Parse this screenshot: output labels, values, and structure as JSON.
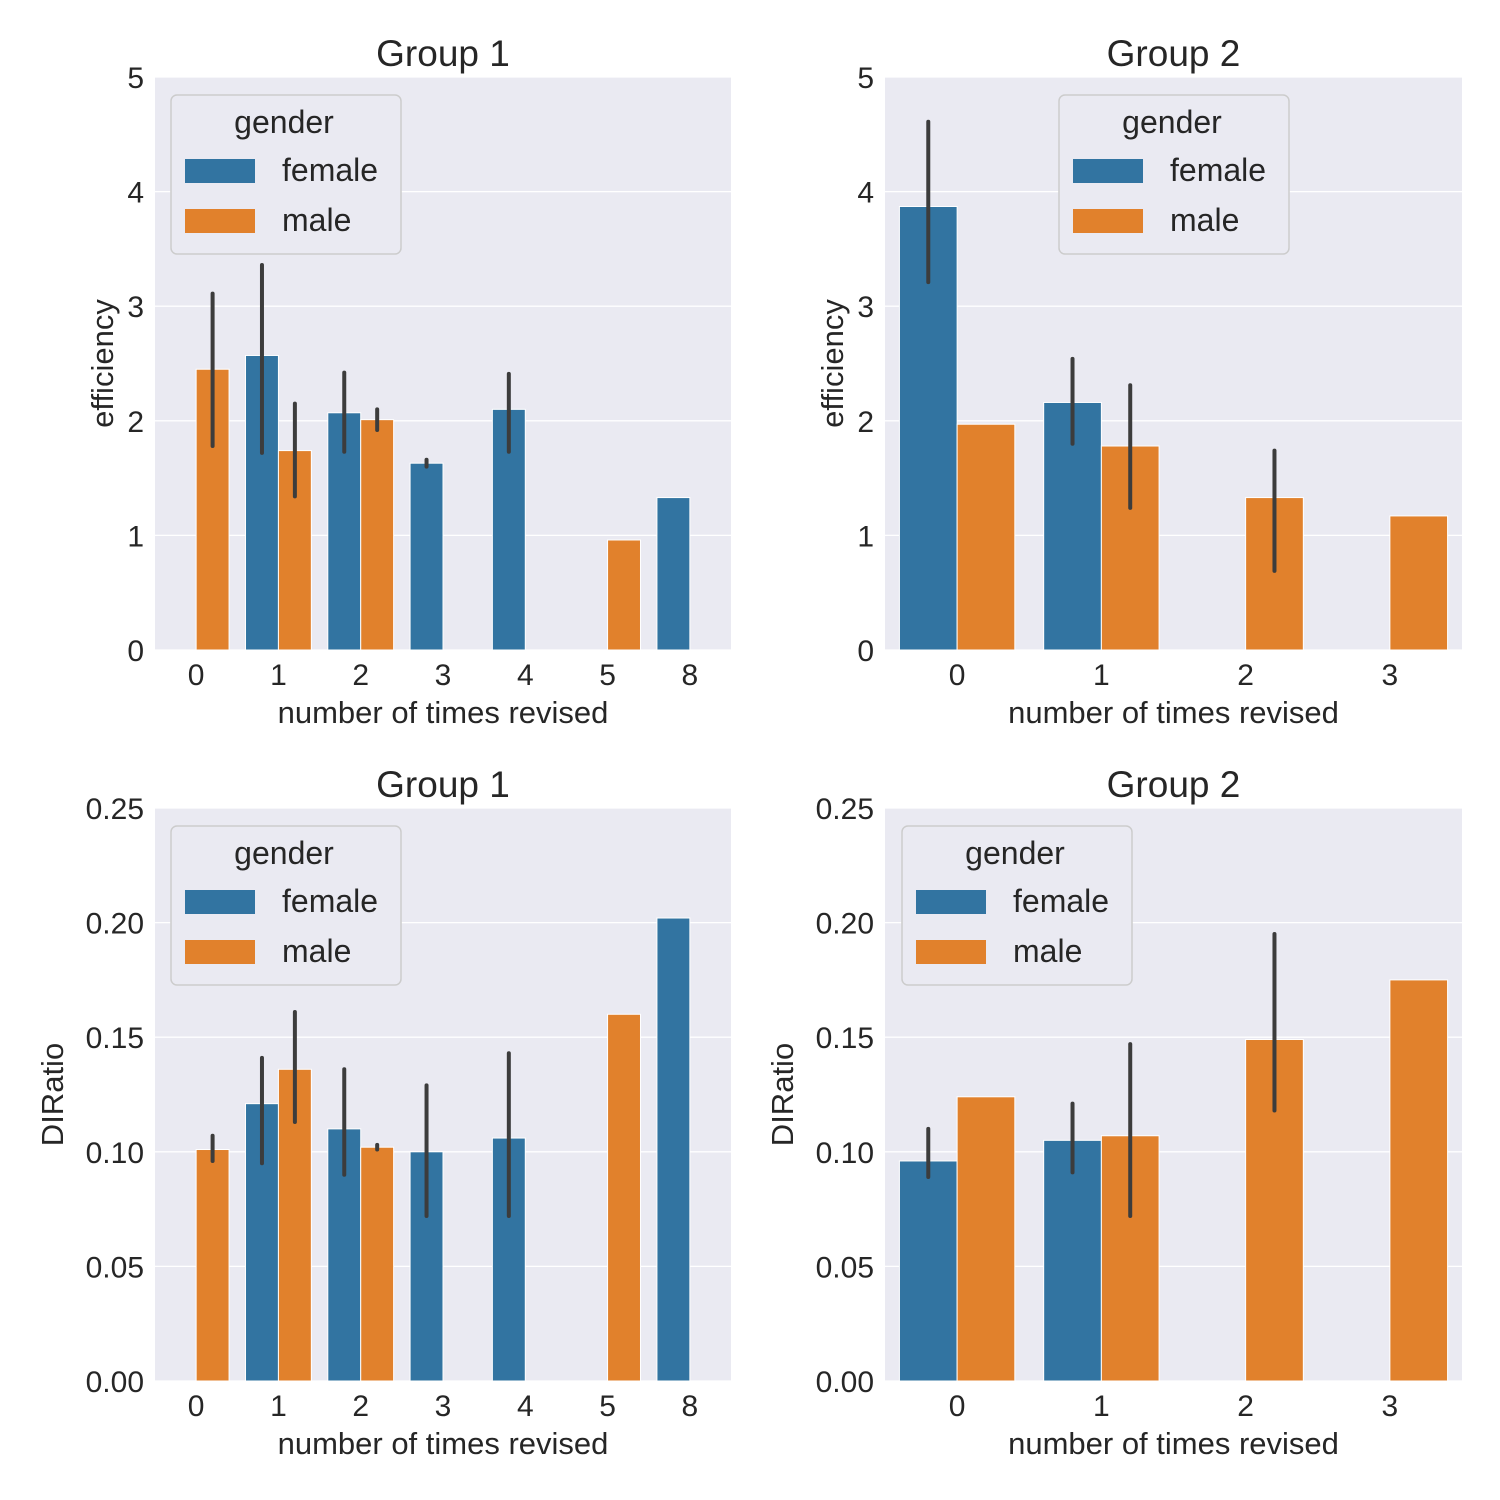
{
  "colors": {
    "female": "#3274a1",
    "male": "#e1812c",
    "background": "#eaeaf2",
    "grid": "#ffffff",
    "errorbar": "#3c3c3c"
  },
  "chart_data": [
    {
      "type": "bar",
      "title": "Group 1",
      "xlabel": "number of times revised",
      "ylabel": "efficiency",
      "ylim": [
        0,
        5
      ],
      "yticks": [
        "0",
        "1",
        "2",
        "3",
        "4",
        "5"
      ],
      "ytick_values": [
        0,
        1,
        2,
        3,
        4,
        5
      ],
      "categories": [
        "0",
        "1",
        "2",
        "3",
        "4",
        "5",
        "8"
      ],
      "legend": {
        "title": "gender",
        "entries": [
          "female",
          "male"
        ],
        "placement": "upper-left"
      },
      "series": [
        {
          "name": "female",
          "values": [
            null,
            2.57,
            2.07,
            1.63,
            2.1,
            null,
            1.33
          ],
          "err_low": [
            null,
            1.72,
            1.73,
            1.6,
            1.73,
            null,
            null
          ],
          "err_high": [
            null,
            3.36,
            2.42,
            1.66,
            2.41,
            null,
            null
          ]
        },
        {
          "name": "male",
          "values": [
            2.45,
            1.74,
            2.01,
            null,
            null,
            0.96,
            null
          ],
          "err_low": [
            1.78,
            1.34,
            1.92,
            null,
            null,
            null,
            null
          ],
          "err_high": [
            3.11,
            2.15,
            2.1,
            null,
            null,
            null,
            null
          ]
        }
      ]
    },
    {
      "type": "bar",
      "title": "Group 2",
      "xlabel": "number of times revised",
      "ylabel": "efficiency",
      "ylim": [
        0,
        5
      ],
      "yticks": [
        "0",
        "1",
        "2",
        "3",
        "4",
        "5"
      ],
      "ytick_values": [
        0,
        1,
        2,
        3,
        4,
        5
      ],
      "categories": [
        "0",
        "1",
        "2",
        "3"
      ],
      "legend": {
        "title": "gender",
        "entries": [
          "female",
          "male"
        ],
        "placement": "upper-center"
      },
      "series": [
        {
          "name": "female",
          "values": [
            3.87,
            2.16,
            null,
            null
          ],
          "err_low": [
            3.21,
            1.8,
            null,
            null
          ],
          "err_high": [
            4.61,
            2.54,
            null,
            null
          ]
        },
        {
          "name": "male",
          "values": [
            1.97,
            1.78,
            1.33,
            1.17
          ],
          "err_low": [
            null,
            1.24,
            0.69,
            null
          ],
          "err_high": [
            null,
            2.31,
            1.74,
            null
          ]
        }
      ]
    },
    {
      "type": "bar",
      "title": "Group 1",
      "xlabel": "number of times revised",
      "ylabel": "DIRatio",
      "ylim": [
        0,
        0.25
      ],
      "yticks": [
        "0.00",
        "0.05",
        "0.10",
        "0.15",
        "0.20",
        "0.25"
      ],
      "ytick_values": [
        0,
        0.05,
        0.1,
        0.15,
        0.2,
        0.25
      ],
      "categories": [
        "0",
        "1",
        "2",
        "3",
        "4",
        "5",
        "8"
      ],
      "legend": {
        "title": "gender",
        "entries": [
          "female",
          "male"
        ],
        "placement": "upper-left"
      },
      "series": [
        {
          "name": "female",
          "values": [
            null,
            0.121,
            0.11,
            0.1,
            0.106,
            null,
            0.202
          ],
          "err_low": [
            null,
            0.095,
            0.09,
            0.072,
            0.072,
            null,
            null
          ],
          "err_high": [
            null,
            0.141,
            0.136,
            0.129,
            0.143,
            null,
            null
          ]
        },
        {
          "name": "male",
          "values": [
            0.101,
            0.136,
            0.102,
            null,
            null,
            0.16,
            null
          ],
          "err_low": [
            0.096,
            0.113,
            0.101,
            null,
            null,
            null,
            null
          ],
          "err_high": [
            0.107,
            0.161,
            0.103,
            null,
            null,
            null,
            null
          ]
        }
      ]
    },
    {
      "type": "bar",
      "title": "Group 2",
      "xlabel": "number of times revised",
      "ylabel": "DIRatio",
      "ylim": [
        0,
        0.25
      ],
      "yticks": [
        "0.00",
        "0.05",
        "0.10",
        "0.15",
        "0.20",
        "0.25"
      ],
      "ytick_values": [
        0,
        0.05,
        0.1,
        0.15,
        0.2,
        0.25
      ],
      "categories": [
        "0",
        "1",
        "2",
        "3"
      ],
      "legend": {
        "title": "gender",
        "entries": [
          "female",
          "male"
        ],
        "placement": "upper-left"
      },
      "series": [
        {
          "name": "female",
          "values": [
            0.096,
            0.105,
            null,
            null
          ],
          "err_low": [
            0.089,
            0.091,
            null,
            null
          ],
          "err_high": [
            0.11,
            0.121,
            null,
            null
          ]
        },
        {
          "name": "male",
          "values": [
            0.124,
            0.107,
            0.149,
            0.175
          ],
          "err_low": [
            null,
            0.072,
            0.118,
            null
          ],
          "err_high": [
            null,
            0.147,
            0.195,
            null
          ]
        }
      ]
    }
  ]
}
